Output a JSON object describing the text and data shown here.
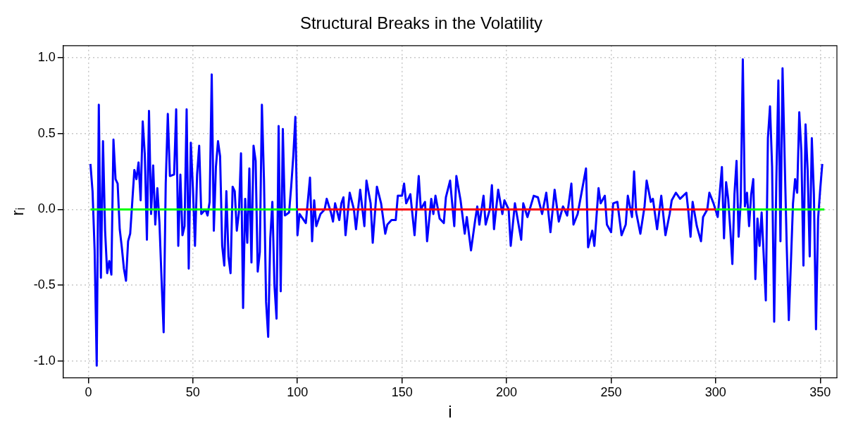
{
  "chart_data": {
    "type": "line",
    "title": "Structural Breaks in the Volatility",
    "xlabel": "i",
    "ylabel": "rᵢ",
    "xlim": [
      -12,
      358
    ],
    "xticks": [
      0,
      50,
      100,
      150,
      200,
      250,
      300,
      350
    ],
    "ylim": [
      -1.11,
      1.08
    ],
    "yticks": [
      {
        "value": -1,
        "label": "-1.0"
      },
      {
        "value": -0.5,
        "label": "-0.5"
      },
      {
        "value": 0,
        "label": "0.0"
      },
      {
        "value": 0.5,
        "label": "0.5"
      },
      {
        "value": 1,
        "label": "1.0"
      }
    ],
    "grid": true,
    "legend": false,
    "marker": "none",
    "line_style": "solid",
    "series": [
      {
        "color": "#0000ff",
        "x": [
          1,
          2,
          3,
          4,
          5,
          6,
          7,
          8,
          9,
          10,
          11,
          12,
          13,
          14,
          15,
          16,
          17,
          18,
          19,
          20,
          21,
          22,
          23,
          24,
          25,
          26,
          27,
          28,
          29,
          30,
          31,
          32,
          33,
          34,
          35,
          36,
          37,
          38,
          39,
          41,
          42,
          43,
          44,
          45,
          46,
          47,
          48,
          49,
          50,
          51,
          52,
          53,
          54,
          56,
          57,
          58,
          59,
          60,
          61,
          62,
          63,
          64,
          65,
          66,
          67,
          68,
          69,
          70,
          71,
          72,
          73,
          74,
          75,
          76,
          77,
          78,
          79,
          80,
          81,
          82,
          83,
          84,
          85,
          86,
          87,
          88,
          89,
          90,
          91,
          92,
          93,
          94,
          95,
          96,
          97,
          98,
          99,
          100,
          101,
          104,
          105,
          106,
          107,
          108,
          109,
          111,
          113,
          114,
          116,
          117,
          118,
          120,
          121,
          122,
          123,
          125,
          127,
          128,
          129,
          130,
          132,
          133,
          135,
          136,
          138,
          140,
          142,
          143,
          145,
          147,
          148,
          150,
          151,
          152,
          154,
          156,
          158,
          159,
          161,
          162,
          164,
          165,
          166,
          168,
          170,
          171,
          173,
          175,
          176,
          178,
          180,
          181,
          183,
          185,
          186,
          187,
          189,
          190,
          192,
          193,
          194,
          196,
          198,
          199,
          201,
          202,
          204,
          207,
          208,
          210,
          213,
          215,
          217,
          219,
          221,
          223,
          225,
          227,
          229,
          231,
          232,
          234,
          236,
          238,
          239,
          241,
          242,
          244,
          245,
          247,
          248,
          250,
          251,
          253,
          255,
          257,
          258,
          260,
          261,
          262,
          264,
          266,
          267,
          269,
          270,
          272,
          274,
          276,
          278,
          279,
          281,
          283,
          286,
          287,
          288,
          289,
          291,
          293,
          294,
          296,
          297,
          299,
          301,
          303,
          304,
          305,
          306,
          307,
          308,
          309,
          310,
          311,
          312,
          313,
          314,
          315,
          316,
          317,
          318,
          319,
          320,
          321,
          322,
          323,
          324,
          325,
          326,
          327,
          328,
          329,
          330,
          331,
          332,
          333,
          334,
          335,
          336,
          337,
          338,
          339,
          340,
          341,
          342,
          343,
          344,
          345,
          346,
          347,
          348,
          349,
          350,
          351
        ],
        "values": [
          0.3,
          0.12,
          -0.27,
          -1.03,
          0.69,
          -0.45,
          0.45,
          -0.14,
          -0.42,
          -0.34,
          -0.43,
          0.46,
          0.2,
          0.17,
          -0.13,
          -0.25,
          -0.39,
          -0.47,
          -0.21,
          -0.16,
          0.05,
          0.26,
          0.2,
          0.31,
          0.06,
          0.58,
          0.36,
          -0.2,
          0.65,
          -0.03,
          0.29,
          -0.1,
          0.14,
          -0.09,
          -0.46,
          -0.81,
          0.17,
          0.63,
          0.22,
          0.23,
          0.66,
          -0.24,
          0.23,
          -0.17,
          -0.11,
          0.66,
          -0.39,
          0.44,
          0.14,
          -0.24,
          0.23,
          0.42,
          -0.03,
          0,
          -0.04,
          0.05,
          0.89,
          -0.14,
          0.28,
          0.45,
          0.35,
          -0.24,
          -0.37,
          0.12,
          -0.31,
          -0.42,
          0.15,
          0.12,
          -0.14,
          -0.02,
          0.37,
          -0.65,
          0.07,
          -0.22,
          0.27,
          -0.35,
          0.42,
          0.32,
          -0.41,
          -0.28,
          0.69,
          0.19,
          -0.61,
          -0.84,
          -0.19,
          0.05,
          -0.5,
          -0.72,
          0.55,
          -0.54,
          0.53,
          -0.04,
          -0.03,
          -0.02,
          0.15,
          0.35,
          0.61,
          -0.17,
          -0.03,
          -0.09,
          0.06,
          0.21,
          -0.21,
          0.06,
          -0.11,
          -0.03,
          0,
          0.07,
          -0.02,
          -0.08,
          0.04,
          -0.07,
          0.04,
          0.08,
          -0.17,
          0.11,
          0,
          -0.13,
          0,
          0.13,
          -0.11,
          0.19,
          0.04,
          -0.22,
          0.15,
          0.04,
          -0.16,
          -0.1,
          -0.07,
          -0.07,
          0.09,
          0.09,
          0.17,
          0.04,
          0.1,
          -0.17,
          0.22,
          0,
          0.05,
          -0.21,
          0.07,
          -0.03,
          0.09,
          -0.06,
          -0.09,
          0.08,
          0.19,
          -0.11,
          0.22,
          0.06,
          -0.16,
          -0.05,
          -0.27,
          -0.07,
          0.02,
          -0.1,
          0.09,
          -0.1,
          0,
          0.16,
          -0.13,
          0.13,
          -0.03,
          0.06,
          0,
          -0.24,
          0.04,
          -0.2,
          0.04,
          -0.05,
          0.09,
          0.08,
          -0.03,
          0.11,
          -0.15,
          0.13,
          -0.08,
          0.02,
          -0.04,
          0.17,
          -0.1,
          -0.03,
          0.12,
          0.27,
          -0.25,
          -0.14,
          -0.24,
          0.14,
          0.04,
          0.09,
          -0.1,
          -0.15,
          0.04,
          0.05,
          -0.17,
          -0.1,
          0.09,
          -0.05,
          0.25,
          -0.02,
          -0.16,
          0.02,
          0.19,
          0.05,
          0.07,
          -0.13,
          0.09,
          -0.17,
          -0.03,
          0.06,
          0.11,
          0.07,
          0.11,
          -0.02,
          -0.18,
          0.05,
          -0.11,
          -0.21,
          -0.05,
          0,
          0.11,
          0.04,
          -0.05,
          0.28,
          -0.19,
          0.18,
          0.07,
          -0.13,
          -0.36,
          0.1,
          0.32,
          -0.18,
          0.05,
          0.99,
          0.02,
          0.11,
          -0.11,
          0.1,
          0.2,
          -0.46,
          -0.06,
          -0.24,
          -0.02,
          -0.31,
          -0.6,
          0.47,
          0.68,
          0.28,
          -0.74,
          0.17,
          0.85,
          -0.21,
          0.93,
          0.34,
          -0.24,
          -0.73,
          -0.35,
          0.04,
          0.2,
          0.11,
          0.64,
          0.38,
          -0.37,
          0.56,
          0.26,
          -0.31,
          0.47,
          0.1,
          -0.79,
          -0.06,
          0.13,
          0.3
        ]
      },
      {
        "color": "#00ff00",
        "x": [
          1,
          100,
          200,
          300,
          352
        ],
        "values": [
          0,
          0,
          null,
          0,
          0
        ]
      },
      {
        "color": "#ff0000",
        "x": [
          100,
          300
        ],
        "values": [
          0,
          0
        ]
      }
    ]
  }
}
